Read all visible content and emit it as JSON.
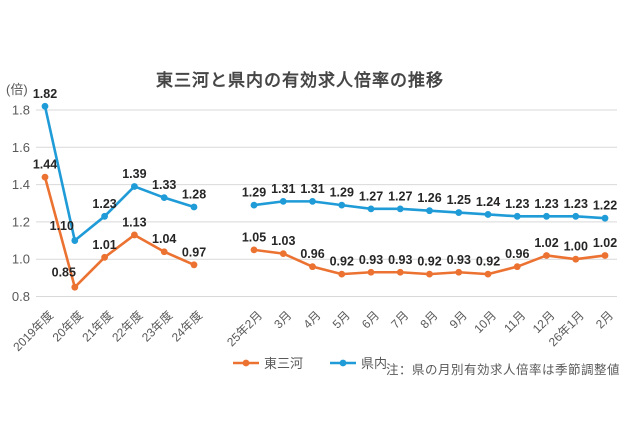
{
  "title": "東三河と県内の有効求人倍率の推移",
  "y_unit_label": "(倍)",
  "note": "注：県の月別有効求人倍率は季節調整値",
  "colors": {
    "higashi_mikawa": "#EC7232",
    "kennai": "#1F9BD7",
    "gridline": "#D9D9D9",
    "axis_text": "#595959",
    "data_label": "#262626",
    "title_text": "#464646"
  },
  "legend": [
    {
      "name": "東三河",
      "color": "#EC7232"
    },
    {
      "name": "県内",
      "color": "#1F9BD7"
    }
  ],
  "chart_data": {
    "type": "line",
    "title": "東三河と県内の有効求人倍率の推移",
    "xlabel": "",
    "ylabel": "(倍)",
    "ylim": [
      0.8,
      1.8
    ],
    "yticks": [
      0.8,
      1.0,
      1.2,
      1.4,
      1.6,
      1.8
    ],
    "grid": "horizontal",
    "legend_position": "bottom",
    "note": "注：県の月別有効求人倍率は季節調整値",
    "groups": [
      {
        "name": "annual",
        "categories": [
          "2019年度",
          "20年度",
          "21年度",
          "22年度",
          "23年度",
          "24年度"
        ],
        "series": [
          {
            "name": "東三河",
            "color": "#EC7232",
            "values": [
              1.44,
              0.85,
              1.01,
              1.13,
              1.04,
              0.97
            ]
          },
          {
            "name": "県内",
            "color": "#1F9BD7",
            "values": [
              1.82,
              1.1,
              1.23,
              1.39,
              1.33,
              1.28
            ]
          }
        ]
      },
      {
        "name": "monthly",
        "categories": [
          "25年2月",
          "3月",
          "4月",
          "5月",
          "6月",
          "7月",
          "8月",
          "9月",
          "10月",
          "11月",
          "12月",
          "26年1月",
          "2月"
        ],
        "series": [
          {
            "name": "東三河",
            "color": "#EC7232",
            "values": [
              1.05,
              1.03,
              0.96,
              0.92,
              0.93,
              0.93,
              0.92,
              0.93,
              0.92,
              0.96,
              1.02,
              1.0,
              1.02
            ]
          },
          {
            "name": "県内",
            "color": "#1F9BD7",
            "values": [
              1.29,
              1.31,
              1.31,
              1.29,
              1.27,
              1.27,
              1.26,
              1.25,
              1.24,
              1.23,
              1.23,
              1.23,
              1.22
            ]
          }
        ]
      }
    ]
  }
}
